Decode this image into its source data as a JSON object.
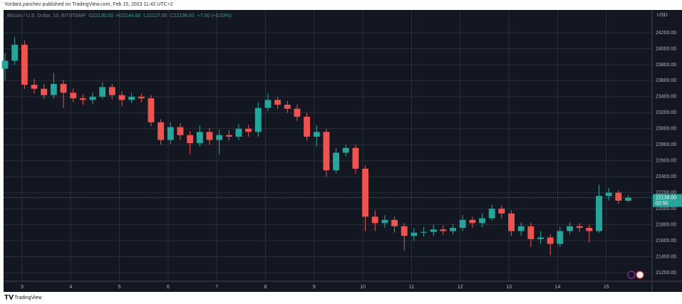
{
  "header": {
    "published": "YordanLyanchev published on TradingView.com, Feb 15, 2023 11:42 UTC+2"
  },
  "legend": {
    "symbol": "Bitcoin / U.S. Dollar, 15, BITSTAMP",
    "o_label": "O",
    "o": "22130.00",
    "h_label": "H",
    "h": "22144.00",
    "l_label": "L",
    "l": "22127.00",
    "c_label": "C",
    "c": "22138.00",
    "change": "+7.00 (+0.03%)"
  },
  "footer": {
    "brand": "TradingView"
  },
  "chart_data": {
    "type": "candlestick",
    "currency": "USD",
    "up_color": "#26a69a",
    "down_color": "#ef5350",
    "grid": true,
    "xlim": [
      2.62,
      15.94
    ],
    "xticks": [
      3,
      4,
      5,
      6,
      7,
      8,
      9,
      10,
      11,
      12,
      13,
      14,
      15
    ],
    "ylim": [
      21093,
      24485
    ],
    "yticks": [
      {
        "value": 21200,
        "label": "21200.00"
      },
      {
        "value": 21400,
        "label": "21400.00"
      },
      {
        "value": 21600,
        "label": "21600.00"
      },
      {
        "value": 21800,
        "label": "21800.00"
      },
      {
        "value": 22000,
        "label": "22000.00"
      },
      {
        "value": 22200,
        "label": "22200.00"
      },
      {
        "value": 22400,
        "label": "22400.00"
      },
      {
        "value": 22600,
        "label": "22600.00"
      },
      {
        "value": 22800,
        "label": "22800.00"
      },
      {
        "value": 23000,
        "label": "23000.00"
      },
      {
        "value": 23200,
        "label": "23200.00"
      },
      {
        "value": 23400,
        "label": "23400.00"
      },
      {
        "value": 23600,
        "label": "23600.00"
      },
      {
        "value": 23800,
        "label": "23800.00"
      },
      {
        "value": 24000,
        "label": "24000.00"
      },
      {
        "value": 24200,
        "label": "24200.00"
      }
    ],
    "last_price": {
      "value": 22138,
      "label": "22138.00"
    },
    "countdown": "02:50",
    "x": [
      2.65,
      2.85,
      3.05,
      3.25,
      3.45,
      3.65,
      3.85,
      4.05,
      4.25,
      4.45,
      4.65,
      4.85,
      5.05,
      5.25,
      5.45,
      5.65,
      5.85,
      6.05,
      6.25,
      6.45,
      6.65,
      6.85,
      7.05,
      7.25,
      7.45,
      7.65,
      7.85,
      8.05,
      8.25,
      8.45,
      8.65,
      8.85,
      9.05,
      9.25,
      9.45,
      9.65,
      9.85,
      10.05,
      10.25,
      10.45,
      10.65,
      10.85,
      11.05,
      11.25,
      11.45,
      11.65,
      11.85,
      12.05,
      12.25,
      12.45,
      12.65,
      12.85,
      13.05,
      13.25,
      13.45,
      13.65,
      13.85,
      14.05,
      14.25,
      14.45,
      14.65,
      14.85,
      15.05,
      15.25,
      15.45
    ],
    "open": [
      23750,
      23850,
      24050,
      23550,
      23500,
      23420,
      23560,
      23450,
      23380,
      23360,
      23400,
      23520,
      23420,
      23360,
      23400,
      23380,
      23080,
      22860,
      23020,
      22920,
      22820,
      22960,
      22860,
      22920,
      22900,
      23000,
      22960,
      23260,
      23360,
      23300,
      23250,
      23150,
      22900,
      22960,
      22480,
      22700,
      22760,
      22500,
      21900,
      21820,
      21860,
      21780,
      21660,
      21700,
      21710,
      21740,
      21720,
      21760,
      21860,
      21820,
      21880,
      22000,
      21940,
      21720,
      21780,
      21620,
      21640,
      21560,
      21720,
      21780,
      21760,
      21720,
      22160,
      22200,
      22100
    ],
    "high": [
      23950,
      24150,
      24100,
      23620,
      23560,
      23700,
      23610,
      23500,
      23430,
      23450,
      23580,
      23560,
      23470,
      23450,
      23440,
      23420,
      23120,
      23080,
      23070,
      22970,
      23040,
      23010,
      22990,
      22980,
      23060,
      23050,
      23330,
      23440,
      23400,
      23350,
      23300,
      23200,
      23040,
      23000,
      22760,
      22800,
      22800,
      22540,
      21980,
      21920,
      21900,
      21820,
      21760,
      21770,
      21800,
      21790,
      21810,
      21920,
      21900,
      21940,
      22050,
      22040,
      21980,
      21830,
      21820,
      21720,
      21680,
      21770,
      21830,
      21820,
      21800,
      22300,
      22260,
      22230,
      22170
    ],
    "low": [
      23600,
      23800,
      23500,
      23440,
      23370,
      23380,
      23260,
      23330,
      23300,
      23310,
      23370,
      23370,
      23280,
      23320,
      23330,
      23030,
      22800,
      22810,
      22860,
      22680,
      22780,
      22800,
      22680,
      22850,
      22860,
      22900,
      22900,
      23220,
      23250,
      23200,
      23100,
      22850,
      22780,
      22400,
      22440,
      22650,
      22440,
      21720,
      21720,
      21760,
      21700,
      21480,
      21600,
      21650,
      21660,
      21670,
      21680,
      21720,
      21760,
      21770,
      21850,
      21880,
      21660,
      21660,
      21520,
      21560,
      21420,
      21520,
      21680,
      21710,
      21580,
      21700,
      22100,
      22060,
      22080
    ],
    "close": [
      23850,
      24050,
      23550,
      23500,
      23420,
      23560,
      23450,
      23380,
      23360,
      23400,
      23520,
      23420,
      23360,
      23400,
      23380,
      23080,
      22860,
      23020,
      22920,
      22820,
      22960,
      22860,
      22920,
      22900,
      23000,
      22960,
      23260,
      23360,
      23300,
      23250,
      23150,
      22900,
      22960,
      22480,
      22700,
      22760,
      22500,
      21900,
      21820,
      21860,
      21780,
      21660,
      21700,
      21710,
      21740,
      21720,
      21760,
      21860,
      21820,
      21880,
      22000,
      21940,
      21720,
      21780,
      21620,
      21640,
      21560,
      21720,
      21780,
      21760,
      21720,
      22160,
      22200,
      22100,
      22138
    ]
  }
}
